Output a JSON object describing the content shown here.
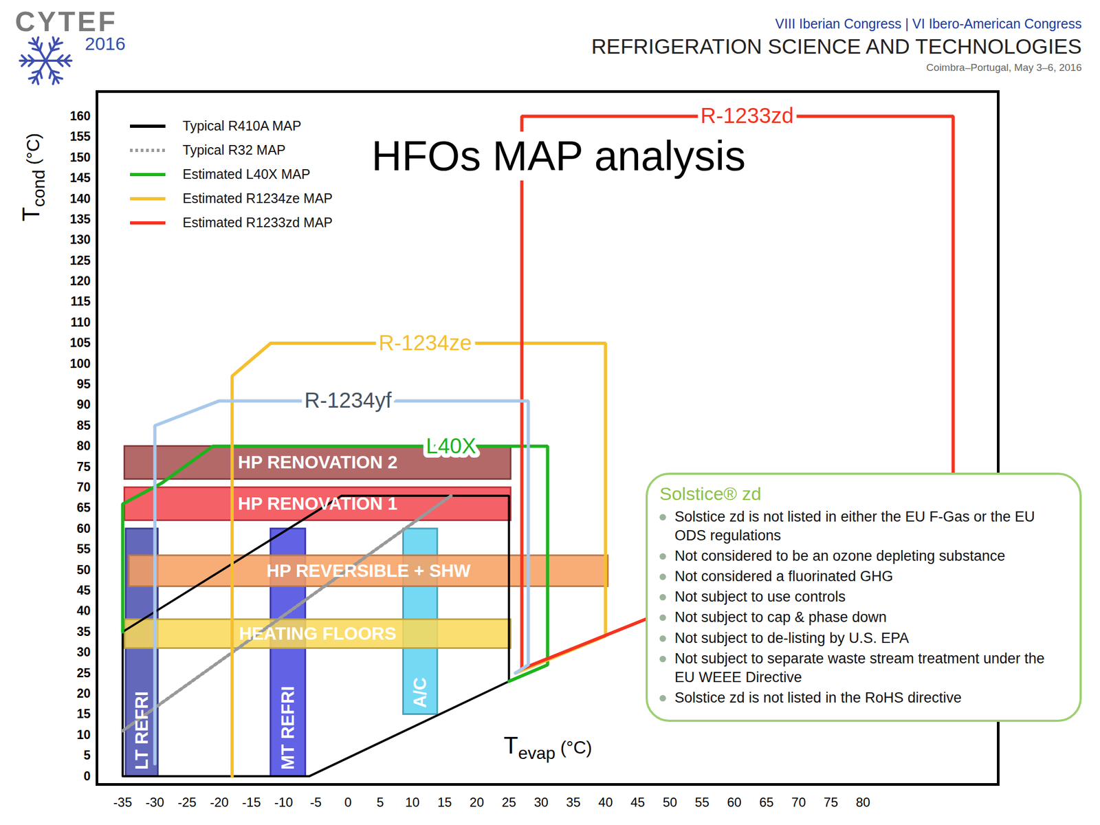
{
  "header": {
    "logo": "CYTEF",
    "logo_year": "2016",
    "congress": "VIII Iberian Congress | VI Ibero-American Congress",
    "title": "REFRIGERATION SCIENCE AND TECHNOLOGIES",
    "place_date": "Coimbra–Portugal, May 3–6, 2016"
  },
  "chart_data": {
    "type": "line",
    "title": "HFOs MAP analysis",
    "x_label": "Tevap (°C)",
    "y_label": "Tcond (°C)",
    "xlim": [
      -39,
      101
    ],
    "ylim": [
      -2,
      166
    ],
    "xticks": [
      -35,
      -30,
      -25,
      -20,
      -15,
      -10,
      -5,
      0,
      5,
      10,
      15,
      20,
      25,
      30,
      35,
      40,
      45,
      50,
      55,
      60,
      65,
      70,
      75,
      80
    ],
    "yticks": [
      0,
      5,
      10,
      15,
      20,
      25,
      30,
      35,
      40,
      45,
      50,
      55,
      60,
      65,
      70,
      75,
      80,
      85,
      90,
      95,
      100,
      105,
      110,
      115,
      120,
      125,
      130,
      135,
      140,
      145,
      150,
      155,
      160
    ],
    "legend": "top-left",
    "series": [
      {
        "name": "Typical R410A MAP",
        "color": "#000000",
        "line_style": "solid",
        "x": [
          -35,
          -35,
          -1,
          25,
          25,
          -6,
          -35
        ],
        "y": [
          0,
          35,
          68,
          68,
          23,
          0,
          0
        ]
      },
      {
        "name": "Typical R32 MAP",
        "color": "#999999",
        "line_style": "dotted",
        "x": [
          -35,
          16
        ],
        "y": [
          11,
          68
        ]
      },
      {
        "name": "Estimated L40X MAP",
        "color": "#1db31d",
        "line_style": "solid",
        "label": "L40X",
        "label_x": 16,
        "label_y": 80,
        "x": [
          25,
          31,
          31,
          -21,
          -29,
          -35,
          -35
        ],
        "y": [
          23,
          27,
          80,
          80,
          71,
          66,
          35
        ]
      },
      {
        "name": "Estimated R1234ze MAP",
        "color": "#f5c02e",
        "line_style": "solid",
        "label": "R-1234ze",
        "label_x": 12,
        "label_y": 105,
        "x": [
          -18,
          -18,
          -12,
          40,
          40,
          26
        ],
        "y": [
          0,
          97,
          105,
          105,
          34,
          25
        ]
      },
      {
        "name": "Estimated R1233zd MAP",
        "color": "#f5331f",
        "line_style": "solid",
        "label": "R-1233zd",
        "label_x": 62,
        "label_y": 160,
        "x": [
          27,
          27,
          94,
          94,
          27
        ],
        "y": [
          26,
          160,
          160,
          68,
          26
        ]
      },
      {
        "color": "#a9c8ea",
        "line_style": "solid",
        "label": "R-1234yf",
        "label_x": 0,
        "label_y": 91,
        "x": [
          -30,
          -30,
          -20,
          28,
          28,
          26
        ],
        "y": [
          3,
          85,
          91,
          91,
          27,
          25
        ]
      }
    ],
    "regions": [
      {
        "label": "LT REFRI",
        "x": [
          -34.5,
          -29.5
        ],
        "y": [
          0,
          60
        ],
        "color": "#4a4fb0"
      },
      {
        "label": "MT REFRI",
        "x": [
          -12,
          -6.6
        ],
        "y": [
          0,
          60
        ],
        "color": "#4848e0"
      },
      {
        "label": "A/C",
        "x": [
          8.6,
          13.9
        ],
        "y": [
          15,
          60
        ],
        "color": "#5fd3f2"
      },
      {
        "label": "HP RENOVATION 2",
        "x": [
          -34.7,
          25.3
        ],
        "y": [
          72,
          80
        ],
        "color": "#a85050"
      },
      {
        "label": "HP RENOVATION 1",
        "x": [
          -34.7,
          25.3
        ],
        "y": [
          62,
          70
        ],
        "color": "#f2474e"
      },
      {
        "label": "HP REVERSIBLE + SHW",
        "x": [
          -34,
          40.4
        ],
        "y": [
          46,
          53.5
        ],
        "color": "#f8a060"
      },
      {
        "label": "HEATING FLOORS",
        "x": [
          -34.7,
          25.3
        ],
        "y": [
          31,
          38
        ],
        "color": "#f9d857"
      }
    ],
    "annotation_box": {
      "title": "Solstice® zd",
      "items": [
        "Solstice zd is not listed in either the EU F-Gas or the EU ODS regulations",
        "Not considered to be an ozone depleting substance",
        "Not considered a fluorinated GHG",
        "Not subject to use controls",
        "Not subject to cap & phase down",
        "Not subject to de-listing by U.S. EPA",
        "Not subject to separate waste stream treatment under the EU WEEE Directive",
        "Solstice zd is not listed in the RoHS directive"
      ]
    }
  }
}
